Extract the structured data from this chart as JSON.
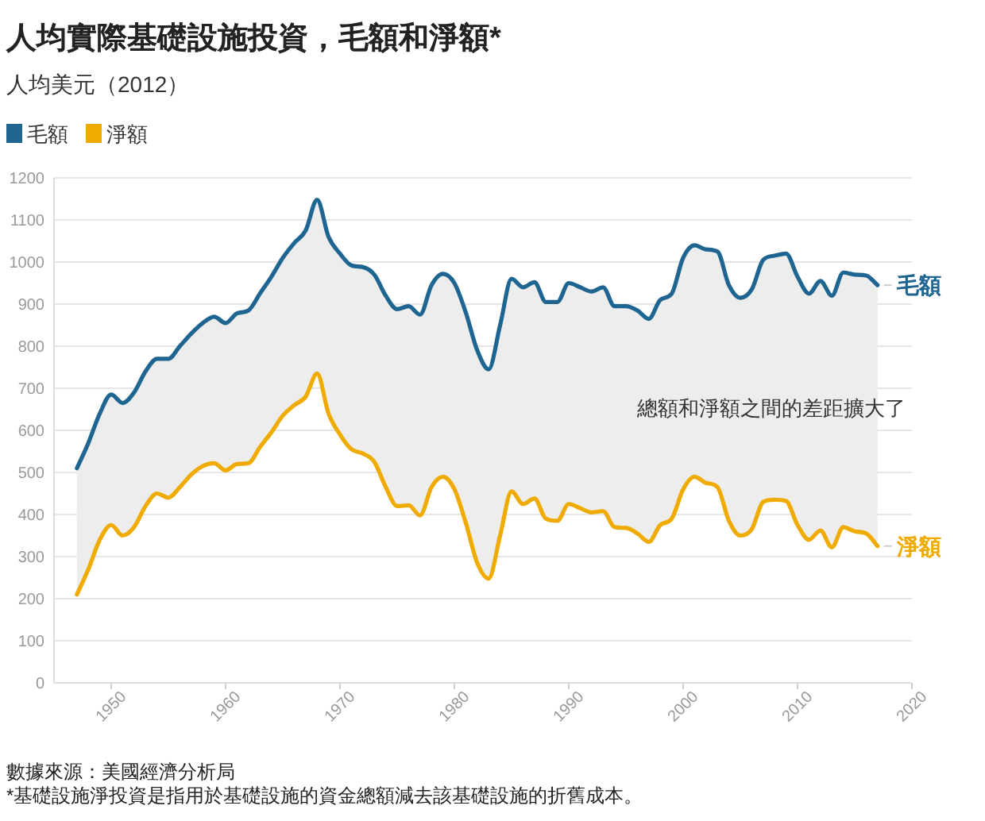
{
  "chart_data": {
    "type": "line",
    "title": "人均實際基礎設施投資，毛額和淨額*",
    "subtitle": "人均美元（2012）",
    "x": [
      1947,
      1948,
      1949,
      1950,
      1951,
      1952,
      1953,
      1954,
      1955,
      1956,
      1957,
      1958,
      1959,
      1960,
      1961,
      1962,
      1963,
      1964,
      1965,
      1966,
      1967,
      1968,
      1969,
      1970,
      1971,
      1972,
      1973,
      1974,
      1975,
      1976,
      1977,
      1978,
      1979,
      1980,
      1981,
      1982,
      1983,
      1984,
      1985,
      1986,
      1987,
      1988,
      1989,
      1990,
      1991,
      1992,
      1993,
      1994,
      1995,
      1996,
      1997,
      1998,
      1999,
      2000,
      2001,
      2002,
      2003,
      2004,
      2005,
      2006,
      2007,
      2008,
      2009,
      2010,
      2011,
      2012,
      2013,
      2014,
      2015,
      2016,
      2017
    ],
    "series": [
      {
        "name": "毛額",
        "color": "#1f6591",
        "values": [
          510,
          570,
          640,
          685,
          665,
          690,
          740,
          770,
          770,
          800,
          830,
          855,
          870,
          855,
          878,
          885,
          925,
          965,
          1010,
          1045,
          1075,
          1148,
          1060,
          1020,
          992,
          988,
          970,
          920,
          888,
          895,
          875,
          945,
          972,
          950,
          880,
          790,
          745,
          850,
          960,
          940,
          952,
          905,
          905,
          950,
          940,
          930,
          940,
          895,
          895,
          885,
          865,
          910,
          925,
          1010,
          1040,
          1030,
          1025,
          945,
          915,
          935,
          1005,
          1015,
          1020,
          965,
          925,
          955,
          920,
          975,
          970,
          968,
          945
        ],
        "upper": [
          510,
          570,
          640,
          685,
          665,
          690,
          740,
          770,
          770,
          800,
          830,
          855,
          870,
          855,
          878,
          885,
          925,
          965,
          1010,
          1045,
          1075,
          1148,
          1060,
          1020,
          992,
          988,
          970,
          920,
          888,
          895,
          875,
          945,
          972,
          950,
          880,
          790,
          745,
          850,
          960,
          940,
          952,
          905,
          905,
          950,
          940,
          930,
          940,
          895,
          895,
          885,
          865,
          910,
          925,
          1010,
          1040,
          1030,
          1025,
          945,
          915,
          935,
          1005,
          1015,
          1020,
          965,
          925,
          955,
          920,
          975,
          970,
          968,
          945
        ],
        "lower": [
          210,
          270,
          340,
          375,
          350,
          370,
          420,
          450,
          440,
          465,
          495,
          515,
          522,
          505,
          520,
          522,
          560,
          595,
          635,
          660,
          680,
          735,
          640,
          590,
          555,
          545,
          525,
          465,
          420,
          422,
          398,
          465,
          490,
          460,
          380,
          285,
          248,
          350,
          455,
          425,
          438,
          390,
          385,
          425,
          415,
          405,
          408,
          370,
          368,
          355,
          335,
          375,
          390,
          460,
          490,
          475,
          465,
          385,
          350,
          365,
          430,
          435,
          432,
          375,
          340,
          362,
          322,
          370,
          360,
          355,
          325
        ]
      },
      {
        "name": "淨額",
        "color": "#f0ab00",
        "values": [
          210,
          270,
          340,
          375,
          350,
          370,
          420,
          450,
          440,
          465,
          495,
          515,
          522,
          505,
          520,
          522,
          560,
          595,
          635,
          660,
          680,
          735,
          640,
          590,
          555,
          545,
          525,
          465,
          420,
          422,
          398,
          465,
          490,
          460,
          380,
          285,
          248,
          350,
          455,
          425,
          438,
          390,
          385,
          425,
          415,
          405,
          408,
          370,
          368,
          355,
          335,
          375,
          390,
          460,
          490,
          475,
          465,
          385,
          350,
          365,
          430,
          435,
          432,
          375,
          340,
          362,
          322,
          370,
          360,
          355,
          325
        ]
      }
    ],
    "xlim": [
      1945,
      2020
    ],
    "xticks": [
      1950,
      1960,
      1970,
      1980,
      1990,
      2000,
      2010,
      2020
    ],
    "ylim": [
      0,
      1200
    ],
    "yticks": [
      0,
      100,
      200,
      300,
      400,
      500,
      600,
      700,
      800,
      900,
      1000,
      1100,
      1200
    ],
    "grid": "y",
    "legend": "top left",
    "annotations": [
      "總額和淨額之間的差距擴大了",
      "數據來源：美國經濟分析局",
      "*基礎設施淨投資是指用於基礎設施的資金總額減去該基礎設施的折舊成本。"
    ]
  }
}
